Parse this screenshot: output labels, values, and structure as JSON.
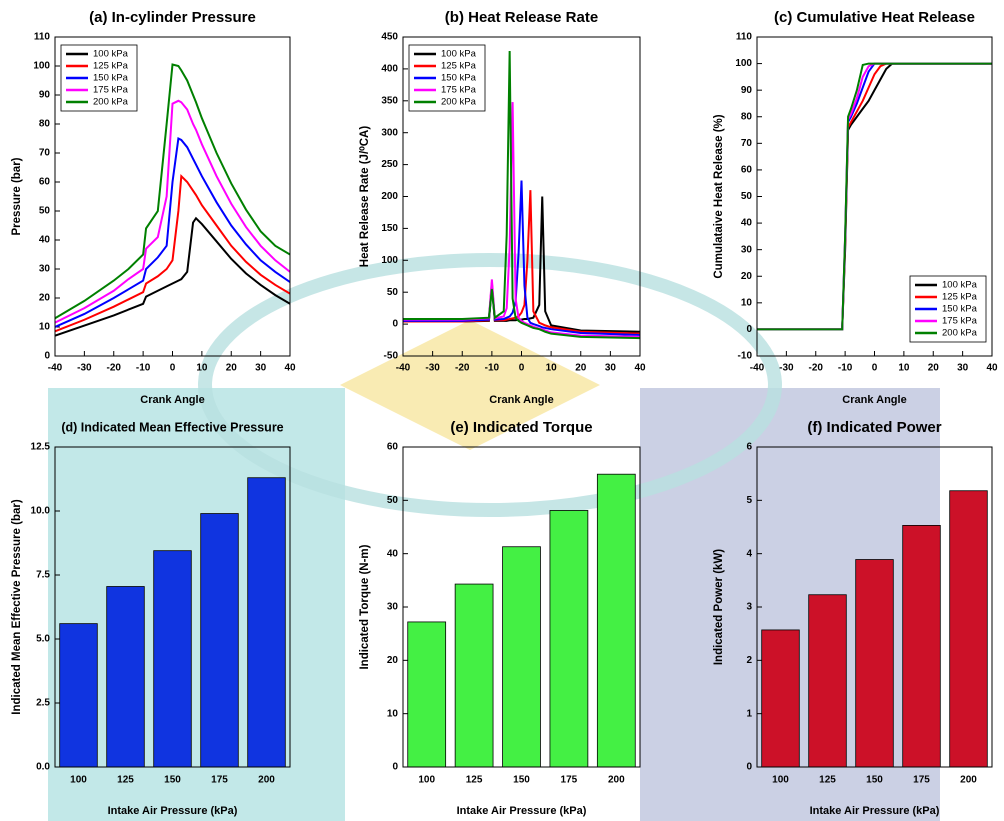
{
  "chart_data": [
    {
      "type": "line",
      "title": "(a) In-cylinder Pressure",
      "x_label": "Crank Angle",
      "y_label": "Pressure (bar)",
      "x": [
        -40,
        -30,
        -20,
        -15,
        -10,
        -9,
        -5,
        -2,
        0,
        2,
        3,
        5,
        7,
        8,
        10,
        15,
        20,
        25,
        30,
        35,
        40
      ],
      "series": [
        {
          "name": "100 kPa",
          "color": "#000000",
          "values": [
            7,
            10.5,
            14,
            16,
            18,
            20.5,
            22.5,
            24,
            25,
            26,
            26.5,
            29,
            46,
            47.5,
            45.5,
            39.5,
            33.5,
            28.5,
            24.5,
            21,
            18
          ]
        },
        {
          "name": "125 kPa",
          "color": "#ff0000",
          "values": [
            8.5,
            12.5,
            17,
            19.5,
            22,
            25,
            27.5,
            30,
            33,
            50,
            62,
            60,
            57,
            55.5,
            52,
            45,
            38,
            32.5,
            28,
            24.5,
            21.5
          ]
        },
        {
          "name": "150 kPa",
          "color": "#0000ff",
          "values": [
            10,
            14.5,
            20,
            23,
            26,
            30,
            34,
            38,
            60,
            75,
            74.5,
            72,
            68,
            66,
            62,
            53,
            45,
            38.5,
            33,
            29,
            25.5
          ]
        },
        {
          "name": "175 kPa",
          "color": "#ff00ff",
          "values": [
            11.5,
            16.5,
            22.5,
            26.5,
            30,
            37,
            41,
            55,
            87,
            88,
            87.5,
            85,
            80,
            78,
            73,
            62,
            52.5,
            44.5,
            38,
            33,
            29
          ]
        },
        {
          "name": "200 kPa",
          "color": "#008000",
          "values": [
            13,
            19,
            26,
            30,
            35,
            44,
            50,
            80,
            100.5,
            100,
            98.5,
            95,
            90,
            87.5,
            82,
            70,
            59.5,
            50.5,
            43,
            38,
            35
          ]
        }
      ],
      "xlim": [
        -40,
        40
      ],
      "xticks": [
        -40,
        -30,
        -20,
        -10,
        0,
        10,
        20,
        30,
        40
      ],
      "ylim": [
        0,
        110
      ],
      "yticks": [
        0,
        10,
        20,
        30,
        40,
        50,
        60,
        70,
        80,
        90,
        100,
        110
      ],
      "legend": "upper left"
    },
    {
      "type": "line",
      "title": "(b) Heat Release Rate",
      "x_label": "Crank Angle",
      "y_label": "Heat Release Rate (J/⁰CA)",
      "x": [
        -40,
        -20,
        -11,
        -10,
        -9,
        -6,
        -5,
        -4,
        -3,
        -2,
        -1,
        0,
        1,
        2,
        3,
        4,
        6,
        7,
        8,
        10,
        20,
        40
      ],
      "series": [
        {
          "name": "100 kPa",
          "color": "#000000",
          "values": [
            4,
            4,
            5,
            60,
            5,
            5,
            5,
            6,
            6,
            6,
            7,
            7,
            8,
            8,
            9,
            10,
            30,
            200,
            20,
            -2,
            -10,
            -12
          ]
        },
        {
          "name": "125 kPa",
          "color": "#ff0000",
          "values": [
            4,
            4,
            6,
            65,
            6,
            6,
            7,
            8,
            9,
            10,
            12,
            18,
            30,
            100,
            210,
            20,
            2,
            0,
            -2,
            -5,
            -12,
            -15
          ]
        },
        {
          "name": "150 kPa",
          "color": "#0000ff",
          "values": [
            5,
            5,
            7,
            62,
            7,
            8,
            10,
            12,
            18,
            35,
            110,
            225,
            60,
            10,
            2,
            0,
            -3,
            -5,
            -6,
            -8,
            -14,
            -17
          ]
        },
        {
          "name": "175 kPa",
          "color": "#ff00ff",
          "values": [
            7,
            7,
            9,
            70,
            9,
            12,
            25,
            120,
            348,
            40,
            10,
            5,
            2,
            0,
            -2,
            -4,
            -7,
            -8,
            -10,
            -13,
            -18,
            -20
          ]
        },
        {
          "name": "200 kPa",
          "color": "#008000",
          "values": [
            8,
            8,
            10,
            55,
            10,
            20,
            140,
            428,
            40,
            10,
            5,
            2,
            0,
            -2,
            -4,
            -6,
            -8,
            -10,
            -12,
            -15,
            -20,
            -22
          ]
        }
      ],
      "xlim": [
        -40,
        40
      ],
      "xticks": [
        -40,
        -30,
        -20,
        -10,
        0,
        10,
        20,
        30,
        40
      ],
      "ylim": [
        -50,
        450
      ],
      "yticks": [
        -50,
        0,
        50,
        100,
        150,
        200,
        250,
        300,
        350,
        400,
        450
      ],
      "legend": "upper left"
    },
    {
      "type": "line",
      "title": "(c) Cumulative Heat Release",
      "x_label": "Crank Angle",
      "y_label": "Cumulataive Heat Release (%)",
      "x": [
        -40,
        -20,
        -11,
        -10,
        -9,
        -8,
        -6,
        -4,
        -2,
        0,
        2,
        4,
        6,
        8,
        40
      ],
      "series": [
        {
          "name": "100 kPa",
          "color": "#000000",
          "values": [
            0,
            0,
            0,
            30,
            75,
            77,
            80,
            83,
            86,
            90,
            94,
            98,
            100,
            100,
            100
          ]
        },
        {
          "name": "125 kPa",
          "color": "#ff0000",
          "values": [
            0,
            0,
            0,
            32,
            76,
            78,
            82,
            86,
            91,
            96,
            99,
            100,
            100,
            100,
            100
          ]
        },
        {
          "name": "150 kPa",
          "color": "#0000ff",
          "values": [
            0,
            0,
            0,
            34,
            78,
            80,
            85,
            91,
            97,
            100,
            100,
            100,
            100,
            100,
            100
          ]
        },
        {
          "name": "175 kPa",
          "color": "#ff00ff",
          "values": [
            0,
            0,
            0,
            35,
            79,
            81,
            87,
            95,
            99,
            100,
            100,
            100,
            100,
            100,
            100
          ]
        },
        {
          "name": "200 kPa",
          "color": "#008000",
          "values": [
            0,
            0,
            0,
            35,
            80,
            83,
            90,
            99.5,
            100,
            100,
            100,
            100,
            100,
            100,
            100
          ]
        }
      ],
      "xlim": [
        -40,
        40
      ],
      "xticks": [
        -40,
        -30,
        -20,
        -10,
        0,
        10,
        20,
        30,
        40
      ],
      "ylim": [
        -10,
        110
      ],
      "yticks": [
        -10,
        0,
        10,
        20,
        30,
        40,
        50,
        60,
        70,
        80,
        90,
        100,
        110
      ],
      "legend": "lower right"
    },
    {
      "type": "bar",
      "title": "(d) Indicated Mean Effective Pressure",
      "x_label": "Intake Air Pressure (kPa)",
      "y_label": "Indicated Mean Effective Pressure (bar)",
      "categories": [
        "100",
        "125",
        "150",
        "175",
        "200"
      ],
      "values": [
        5.6,
        7.05,
        8.45,
        9.9,
        11.3
      ],
      "color": "#1034e0",
      "ylim": [
        0,
        12.5
      ],
      "yticks": [
        {
          "value": 0,
          "label": "0.0"
        },
        2.5,
        {
          "value": 5,
          "label": "5.0"
        },
        7.5,
        {
          "value": 10,
          "label": "10.0"
        },
        12.5
      ]
    },
    {
      "type": "bar",
      "title": "(e) Indicated Torque",
      "x_label": "Intake Air Pressure (kPa)",
      "y_label": "Indicated Torque (N-m)",
      "categories": [
        "100",
        "125",
        "150",
        "175",
        "200"
      ],
      "values": [
        27.2,
        34.3,
        41.3,
        48.1,
        54.9
      ],
      "color": "#44f044",
      "ylim": [
        0,
        60
      ],
      "yticks": [
        0,
        10,
        20,
        30,
        40,
        50,
        60
      ]
    },
    {
      "type": "bar",
      "title": "(f) Indicated Power",
      "x_label": "Intake Air Pressure (kPa)",
      "y_label": "Indicated Power (kW)",
      "categories": [
        "100",
        "125",
        "150",
        "175",
        "200"
      ],
      "values": [
        2.57,
        3.23,
        3.89,
        4.53,
        5.18
      ],
      "color": "#cc1128",
      "ylim": [
        0,
        6
      ],
      "yticks": [
        0,
        1,
        2,
        3,
        4,
        5,
        6
      ]
    }
  ]
}
